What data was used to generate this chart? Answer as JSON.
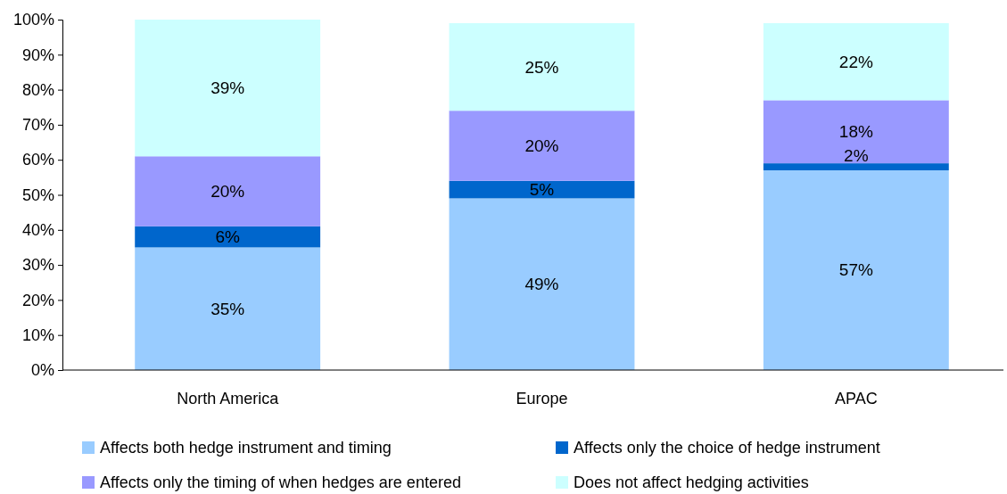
{
  "chart_data": {
    "type": "bar",
    "stacked": true,
    "categories": [
      "North America",
      "Europe",
      "APAC"
    ],
    "series": [
      {
        "name": "Affects both hedge instrument and timing",
        "color": "#99ccff",
        "values": [
          35,
          49,
          57
        ],
        "value_labels": [
          "35%",
          "49%",
          "57%"
        ]
      },
      {
        "name": "Affects only the choice of hedge instrument",
        "color": "#0066cc",
        "values": [
          6,
          5,
          2
        ],
        "value_labels": [
          "6%",
          "5%",
          "2%"
        ]
      },
      {
        "name": "Affects only the timing of when hedges are entered",
        "color": "#9999ff",
        "values": [
          20,
          20,
          18
        ],
        "value_labels": [
          "20%",
          "20%",
          "18%"
        ]
      },
      {
        "name": "Does not affect hedging activities",
        "color": "#ccffff",
        "values": [
          39,
          25,
          22
        ],
        "value_labels": [
          "39%",
          "25%",
          "22%"
        ]
      }
    ],
    "ylim": [
      0,
      100
    ],
    "yticks": [
      {
        "value": 0,
        "label": "0%"
      },
      {
        "value": 10,
        "label": "10%"
      },
      {
        "value": 20,
        "label": "20%"
      },
      {
        "value": 30,
        "label": "30%"
      },
      {
        "value": 40,
        "label": "40%"
      },
      {
        "value": 50,
        "label": "50%"
      },
      {
        "value": 60,
        "label": "60%"
      },
      {
        "value": 70,
        "label": "70%"
      },
      {
        "value": 80,
        "label": "80%"
      },
      {
        "value": 90,
        "label": "90%"
      },
      {
        "value": 100,
        "label": "100%"
      }
    ],
    "grid": false,
    "legend": "bottom"
  }
}
